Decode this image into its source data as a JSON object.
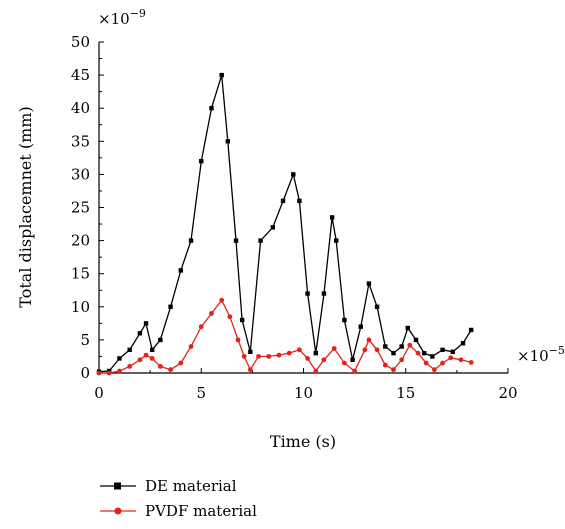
{
  "chart_data": {
    "type": "line",
    "title": "",
    "xlabel": "Time (s)",
    "ylabel": "Total displacemnet (mm)",
    "x_multiplier_label": "×10",
    "x_multiplier_exp": "−5",
    "y_multiplier_label": "×10",
    "y_multiplier_exp": "−9",
    "xlim": [
      0,
      20
    ],
    "ylim": [
      0,
      50
    ],
    "xticks": [
      0,
      5,
      10,
      15,
      20
    ],
    "yticks": [
      0,
      5,
      10,
      15,
      20,
      25,
      30,
      35,
      40,
      45,
      50
    ],
    "grid": false,
    "legend_position": "bottom-left, below plot",
    "series": [
      {
        "name": "DE material",
        "color": "#000000",
        "marker": "square",
        "x": [
          0,
          0.5,
          1,
          1.5,
          2,
          2.3,
          2.6,
          3,
          3.5,
          4,
          4.5,
          5,
          5.5,
          6,
          6.3,
          6.7,
          7,
          7.4,
          7.9,
          8.5,
          9,
          9.5,
          9.8,
          10.2,
          10.6,
          11,
          11.4,
          11.6,
          12,
          12.4,
          12.8,
          13.2,
          13.6,
          14,
          14.4,
          14.8,
          15.1,
          15.5,
          15.9,
          16.3,
          16.8,
          17.3,
          17.8,
          18.2
        ],
        "values": [
          0.2,
          0.3,
          2.2,
          3.5,
          6,
          7.5,
          3.5,
          5,
          10,
          15.5,
          20,
          32,
          40,
          45,
          35,
          20,
          8,
          3.2,
          20,
          22,
          26,
          30,
          26,
          12,
          3,
          12,
          23.5,
          20,
          8,
          2,
          7,
          13.5,
          10,
          4,
          3,
          4,
          6.8,
          5,
          3,
          2.5,
          3.5,
          3.2,
          4.5,
          6.5
        ]
      },
      {
        "name": "PVDF material",
        "color": "#e2231a",
        "marker": "circle",
        "x": [
          0,
          0.5,
          1,
          1.5,
          2,
          2.3,
          2.6,
          3,
          3.5,
          4,
          4.5,
          5,
          5.5,
          6,
          6.4,
          6.8,
          7.1,
          7.4,
          7.8,
          8.3,
          8.8,
          9.3,
          9.8,
          10.2,
          10.6,
          11,
          11.5,
          12,
          12.5,
          13,
          13.2,
          13.6,
          14,
          14.4,
          14.8,
          15.2,
          15.6,
          16,
          16.4,
          16.8,
          17.2,
          17.7,
          18.2
        ],
        "values": [
          0,
          0,
          0.3,
          1,
          2,
          2.7,
          2.2,
          1,
          0.5,
          1.5,
          4,
          7,
          9,
          11,
          8.5,
          5,
          2.5,
          0.5,
          2.5,
          2.5,
          2.7,
          3,
          3.5,
          2.2,
          0.3,
          2,
          3.7,
          1.5,
          0.3,
          3.5,
          5,
          3.5,
          1.2,
          0.5,
          2,
          4.2,
          3,
          1.5,
          0.5,
          1.5,
          2.3,
          2,
          1.6
        ]
      }
    ]
  }
}
